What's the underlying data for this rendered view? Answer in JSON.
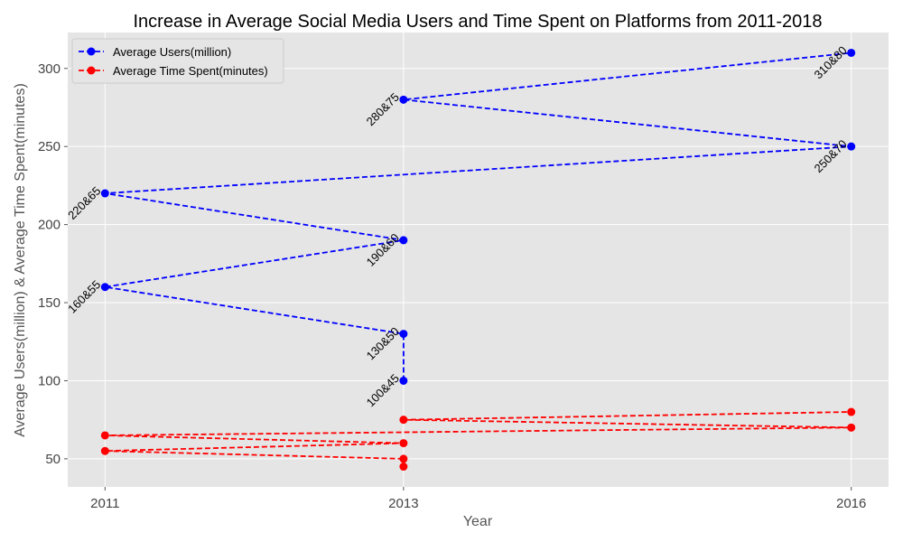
{
  "chart_data": {
    "type": "line",
    "title": "Increase in Average Social Media Users and Time Spent on Platforms from 2011-2018",
    "xlabel": "Year",
    "ylabel": "Average Users(million) & Average Time Spent(minutes)",
    "x_ticks": [
      "2011",
      "2013",
      "2016"
    ],
    "y_ticks": [
      50,
      100,
      150,
      200,
      250,
      300
    ],
    "xlim": [
      2010.75,
      2016.25
    ],
    "ylim": [
      32,
      323
    ],
    "grid": true,
    "legend_position": "top-left",
    "x": [
      2013,
      2013,
      2011,
      2013,
      2011,
      2016,
      2013,
      2016
    ],
    "series": [
      {
        "name": "Average Users(million)",
        "color": "#0000ff",
        "values": [
          100,
          130,
          160,
          190,
          220,
          250,
          280,
          310
        ]
      },
      {
        "name": "Average Time Spent(minutes)",
        "color": "#ff0000",
        "values": [
          45,
          50,
          55,
          60,
          65,
          70,
          75,
          80
        ]
      }
    ],
    "point_labels": [
      "100&45",
      "130&50",
      "160&55",
      "190&60",
      "220&65",
      "250&70",
      "280&75",
      "310&80"
    ]
  }
}
